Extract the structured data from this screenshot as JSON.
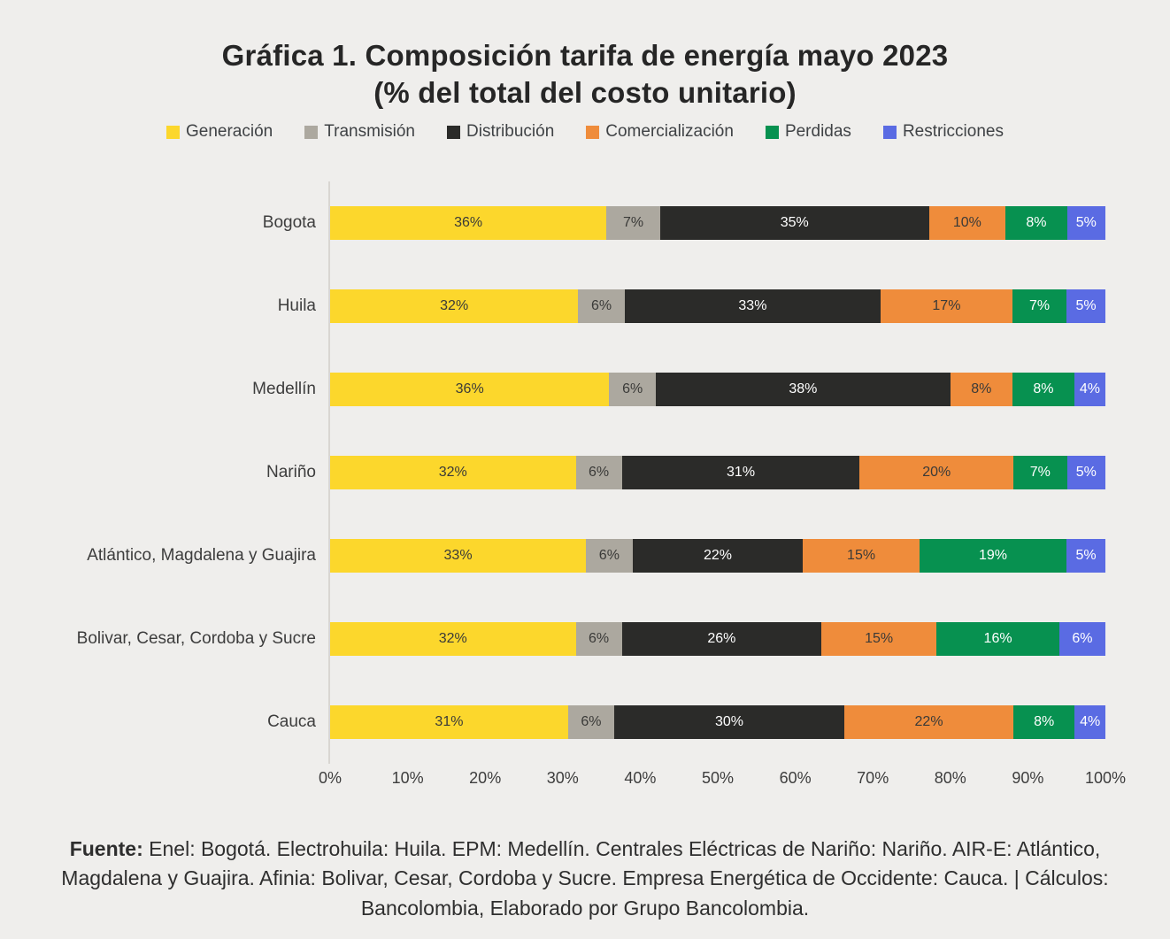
{
  "title": "Gráfica 1. Composición tarifa de energía mayo 2023",
  "subtitle": "(% del total del costo unitario)",
  "chart_data": {
    "type": "bar",
    "orientation": "horizontal",
    "stacked": true,
    "legend_position": "top",
    "grid": false,
    "xlim": [
      0,
      100
    ],
    "value_suffix": "%",
    "x_ticks": [
      "0%",
      "10%",
      "20%",
      "30%",
      "40%",
      "50%",
      "60%",
      "70%",
      "80%",
      "90%",
      "100%"
    ],
    "categories": [
      "Bogota",
      "Huila",
      "Medellín",
      "Nariño",
      "Atlántico, Magdalena y Guajira",
      "Bolivar, Cesar, Cordoba y Sucre",
      "Cauca"
    ],
    "series": [
      {
        "name": "Generación",
        "color": "#FCD72C",
        "text_color": "#3A3A38",
        "values": [
          36,
          32,
          36,
          32,
          33,
          32,
          31
        ]
      },
      {
        "name": "Transmisión",
        "color": "#ACA89F",
        "text_color": "#3A3A38",
        "values": [
          7,
          6,
          6,
          6,
          6,
          6,
          6
        ]
      },
      {
        "name": "Distribución",
        "color": "#2B2B29",
        "text_color": "#FFFFFF",
        "values": [
          35,
          33,
          38,
          31,
          22,
          26,
          30
        ]
      },
      {
        "name": "Comercialización",
        "color": "#EF8C3B",
        "text_color": "#3A3A38",
        "values": [
          10,
          17,
          8,
          20,
          15,
          15,
          22
        ]
      },
      {
        "name": "Perdidas",
        "color": "#079150",
        "text_color": "#FFFFFF",
        "values": [
          8,
          7,
          8,
          7,
          19,
          16,
          8
        ]
      },
      {
        "name": "Restricciones",
        "color": "#5A6BE3",
        "text_color": "#FFFFFF",
        "values": [
          5,
          5,
          4,
          5,
          5,
          6,
          4
        ]
      }
    ]
  },
  "source": {
    "label": "Fuente:",
    "text": "Enel: Bogotá. Electrohuila: Huila. EPM: Medellín. Centrales Eléctricas de Nariño: Nariño. AIR-E: Atlántico, Magdalena y Guajira. Afinia: Bolivar, Cesar, Cordoba y Sucre. Empresa Energética de Occidente: Cauca. | Cálculos: Bancolombia, Elaborado por Grupo Bancolombia."
  },
  "colors": {
    "background": "#EFEEEC",
    "axis_line": "#D9D6D2",
    "label_text": "#3D3D3D",
    "title_text": "#262626"
  }
}
